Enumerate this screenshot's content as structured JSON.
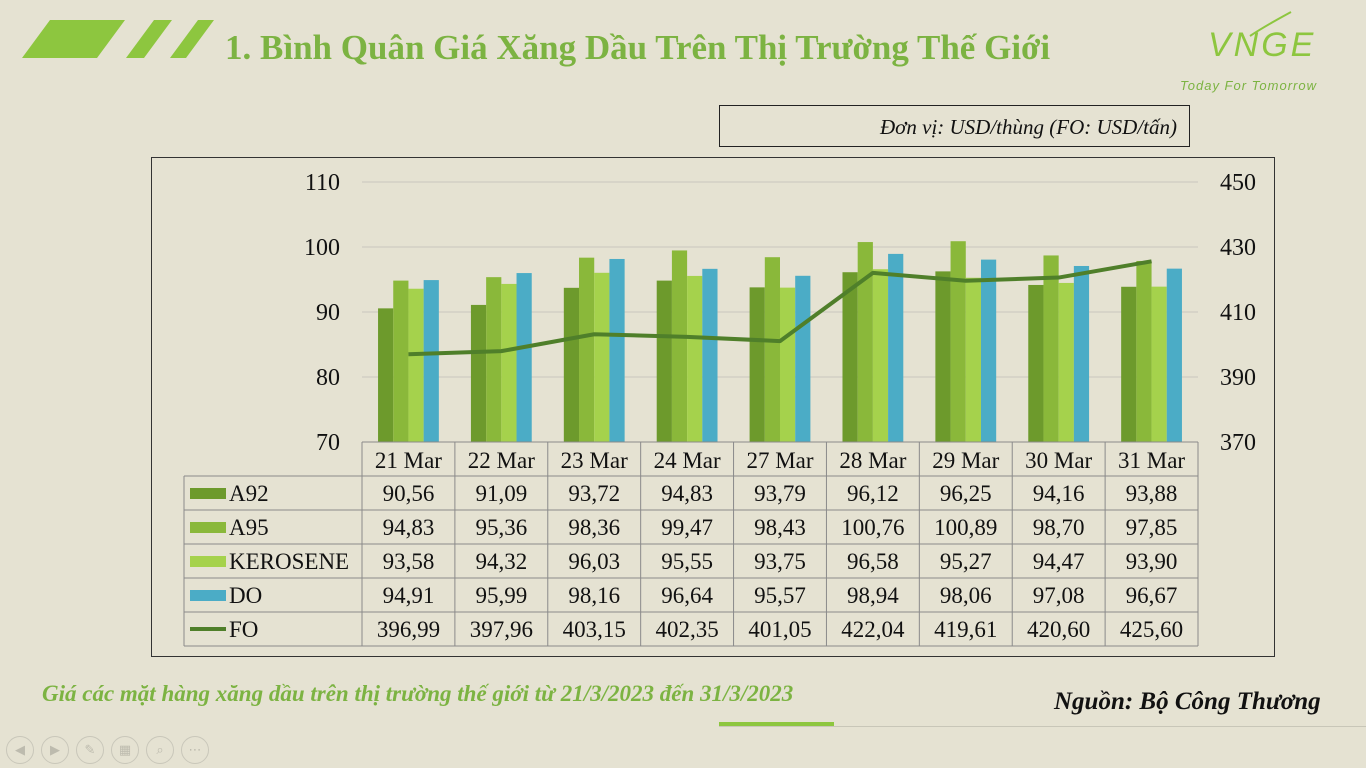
{
  "header": {
    "title": "1. Bình Quân Giá Xăng Dầu Trên Thị Trường Thế Giới",
    "logo_text": "VNGE",
    "logo_tagline": "Today For Tomorrow"
  },
  "unit_label": "Đơn vị: USD/thùng (FO: USD/tấn)",
  "chart_data": {
    "type": "bar",
    "categories": [
      "21 Mar",
      "22 Mar",
      "23 Mar",
      "24 Mar",
      "27 Mar",
      "28 Mar",
      "29 Mar",
      "30 Mar",
      "31 Mar"
    ],
    "series": [
      {
        "name": "A92",
        "type": "bar",
        "axis": "left",
        "color": "#6d9a2c",
        "values": [
          90.56,
          91.09,
          93.72,
          94.83,
          93.79,
          96.12,
          96.25,
          94.16,
          93.88
        ],
        "labels": [
          "90,56",
          "91,09",
          "93,72",
          "94,83",
          "93,79",
          "96,12",
          "96,25",
          "94,16",
          "93,88"
        ]
      },
      {
        "name": "A95",
        "type": "bar",
        "axis": "left",
        "color": "#8ab83a",
        "values": [
          94.83,
          95.36,
          98.36,
          99.47,
          98.43,
          100.76,
          100.89,
          98.7,
          97.85
        ],
        "labels": [
          "94,83",
          "95,36",
          "98,36",
          "99,47",
          "98,43",
          "100,76",
          "100,89",
          "98,70",
          "97,85"
        ]
      },
      {
        "name": "KEROSENE",
        "type": "bar",
        "axis": "left",
        "color": "#a5d24c",
        "values": [
          93.58,
          94.32,
          96.03,
          95.55,
          93.75,
          96.58,
          95.27,
          94.47,
          93.9
        ],
        "labels": [
          "93,58",
          "94,32",
          "96,03",
          "95,55",
          "93,75",
          "96,58",
          "95,27",
          "94,47",
          "93,90"
        ]
      },
      {
        "name": "DO",
        "type": "bar",
        "axis": "left",
        "color": "#4bacc6",
        "values": [
          94.91,
          95.99,
          98.16,
          96.64,
          95.57,
          98.94,
          98.06,
          97.08,
          96.67
        ],
        "labels": [
          "94,91",
          "95,99",
          "98,16",
          "96,64",
          "95,57",
          "98,94",
          "98,06",
          "97,08",
          "96,67"
        ]
      },
      {
        "name": "FO",
        "type": "line",
        "axis": "right",
        "color": "#4f7f2a",
        "values": [
          396.99,
          397.96,
          403.15,
          402.35,
          401.05,
          422.04,
          419.61,
          420.6,
          425.6
        ],
        "labels": [
          "396,99",
          "397,96",
          "403,15",
          "402,35",
          "401,05",
          "422,04",
          "419,61",
          "420,60",
          "425,60"
        ]
      }
    ],
    "ylim_left": [
      70,
      110
    ],
    "yticks_left": [
      70,
      80,
      90,
      100,
      110
    ],
    "ylim_right": [
      370,
      450
    ],
    "yticks_right": [
      370,
      390,
      410,
      430,
      450
    ],
    "grid": true,
    "legend": "data-table"
  },
  "caption": "Giá các mặt hàng xăng dầu trên thị trường thế giới từ 21/3/2023 đến 31/3/2023",
  "source": "Nguồn: Bộ Công Thương",
  "nav_icons": [
    "arrow-left-icon",
    "arrow-right-icon",
    "pen-icon",
    "slides-icon",
    "zoom-icon",
    "more-icon"
  ]
}
